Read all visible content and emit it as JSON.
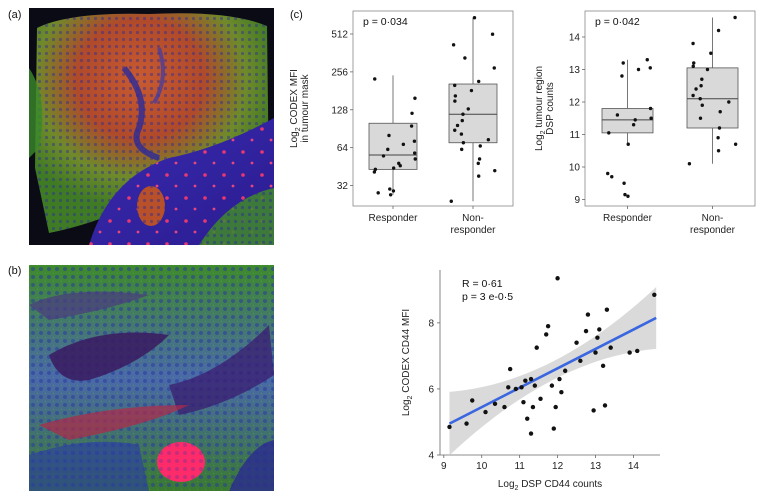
{
  "panels": {
    "a": "(a)",
    "b": "(b)",
    "c": "(c)"
  },
  "images": [
    {
      "name": "micrograph-a",
      "description": "multiplex immunofluorescence tissue section, responder",
      "colors": {
        "stroma": "#2a2ad0",
        "epithelium_red": "#d03a2a",
        "epithelium_green": "#3aa02a",
        "background": "#0a0a14"
      }
    },
    {
      "name": "micrograph-b",
      "description": "multiplex immunofluorescence tissue section, non-responder",
      "colors": {
        "stroma": "#2a2ad0",
        "epithelium_red": "#d03a2a",
        "epithelium_green": "#3aa02a",
        "background": "#0a0a14"
      }
    }
  ],
  "chart_data": [
    {
      "type": "box",
      "name": "codex-mfi-boxplot",
      "annotation": "p = 0·034",
      "ylabel_line1": "Log",
      "ylabel_sub": "2",
      "ylabel_line1_rest": " CODEX MFI",
      "ylabel_line2": "in tumour mask",
      "yscale": "log2",
      "ylim": [
        22,
        780
      ],
      "yticks": [
        {
          "v": 32,
          "label": "32"
        },
        {
          "v": 64,
          "label": "64"
        },
        {
          "v": 128,
          "label": "128"
        },
        {
          "v": 256,
          "label": "256"
        },
        {
          "v": 512,
          "label": "512"
        }
      ],
      "categories": [
        {
          "label_line1": "Responder",
          "label_line2": "",
          "box": {
            "min": 27,
            "q1": 43,
            "median": 56,
            "q3": 100,
            "max": 240
          },
          "points": [
            29,
            27,
            30,
            28,
            41,
            44,
            43,
            48,
            46,
            52,
            55,
            58,
            62,
            68,
            72,
            80,
            95,
            120,
            158,
            225
          ]
        },
        {
          "label_line1": "Non-",
          "label_line2": "responder",
          "box": {
            "min": 24,
            "q1": 70,
            "median": 118,
            "q3": 205,
            "max": 690
          },
          "points": [
            24,
            38,
            42,
            48,
            52,
            62,
            66,
            70,
            74,
            82,
            88,
            96,
            105,
            118,
            130,
            150,
            165,
            182,
            200,
            215,
            275,
            330,
            420,
            510,
            690
          ]
        }
      ]
    },
    {
      "type": "box",
      "name": "dsp-counts-boxplot",
      "annotation": "p = 0·042",
      "ylabel_line1": "Log",
      "ylabel_sub": "2",
      "ylabel_line1_rest": " tumour region",
      "ylabel_line2": "DSP counts",
      "yscale": "linear",
      "ylim": [
        8.8,
        14.8
      ],
      "yticks": [
        {
          "v": 9,
          "label": "9"
        },
        {
          "v": 10,
          "label": "10"
        },
        {
          "v": 11,
          "label": "11"
        },
        {
          "v": 12,
          "label": "12"
        },
        {
          "v": 13,
          "label": "13"
        },
        {
          "v": 14,
          "label": "14"
        }
      ],
      "categories": [
        {
          "label_line1": "Responder",
          "label_line2": "",
          "box": {
            "min": 10.7,
            "q1": 11.05,
            "median": 11.45,
            "q3": 11.8,
            "max": 13.3
          },
          "points": [
            9.1,
            9.15,
            9.5,
            9.7,
            9.8,
            10.7,
            11.05,
            11.3,
            11.45,
            11.5,
            11.6,
            11.8,
            12.8,
            13.0,
            13.05,
            13.2,
            13.3
          ]
        },
        {
          "label_line1": "Non-",
          "label_line2": "responder",
          "box": {
            "min": 10.1,
            "q1": 11.2,
            "median": 12.1,
            "q3": 13.05,
            "max": 14.6
          },
          "points": [
            10.1,
            10.5,
            10.7,
            10.9,
            11.2,
            11.5,
            11.7,
            11.9,
            12.0,
            12.1,
            12.2,
            12.4,
            12.5,
            12.7,
            13.0,
            13.1,
            13.2,
            13.5,
            13.8,
            14.2,
            14.6
          ]
        }
      ]
    },
    {
      "type": "scatter",
      "name": "cd44-correlation-scatter",
      "annotation_r": "R = 0·61",
      "annotation_p": "p = 3 e-0·5",
      "xlabel_prefix": "Log",
      "xlabel_sub": "2",
      "xlabel_rest": " DSP CD44 counts",
      "ylabel_prefix": "Log",
      "ylabel_sub": "2",
      "ylabel_rest": " CODEX CD44 MFI",
      "xlim": [
        8.9,
        14.7
      ],
      "ylim": [
        4.0,
        9.6
      ],
      "xticks": [
        {
          "v": 9,
          "label": "9"
        },
        {
          "v": 10,
          "label": "10"
        },
        {
          "v": 11,
          "label": "11"
        },
        {
          "v": 12,
          "label": "12"
        },
        {
          "v": 13,
          "label": "13"
        },
        {
          "v": 14,
          "label": "14"
        }
      ],
      "yticks": [
        {
          "v": 4,
          "label": "4"
        },
        {
          "v": 6,
          "label": "6"
        },
        {
          "v": 8,
          "label": "8"
        }
      ],
      "regression": {
        "x0": 9.15,
        "y0": 4.95,
        "x1": 14.6,
        "y1": 8.15,
        "color": "#3a66e0",
        "band_color": "#d4d4d4"
      },
      "points": [
        [
          9.15,
          4.85
        ],
        [
          9.6,
          4.95
        ],
        [
          9.75,
          5.65
        ],
        [
          10.1,
          5.3
        ],
        [
          10.35,
          5.55
        ],
        [
          10.6,
          5.45
        ],
        [
          10.7,
          6.05
        ],
        [
          10.75,
          6.6
        ],
        [
          10.9,
          6.0
        ],
        [
          11.05,
          6.05
        ],
        [
          11.1,
          5.6
        ],
        [
          11.15,
          6.25
        ],
        [
          11.2,
          5.1
        ],
        [
          11.3,
          4.65
        ],
        [
          11.3,
          6.3
        ],
        [
          11.35,
          5.45
        ],
        [
          11.4,
          6.1
        ],
        [
          11.45,
          7.25
        ],
        [
          11.55,
          5.7
        ],
        [
          11.7,
          7.65
        ],
        [
          11.75,
          7.9
        ],
        [
          11.85,
          6.1
        ],
        [
          11.9,
          4.8
        ],
        [
          11.95,
          5.45
        ],
        [
          12.0,
          9.35
        ],
        [
          12.05,
          6.3
        ],
        [
          12.1,
          5.9
        ],
        [
          12.2,
          6.55
        ],
        [
          12.5,
          7.4
        ],
        [
          12.6,
          6.85
        ],
        [
          12.75,
          7.75
        ],
        [
          12.8,
          8.25
        ],
        [
          12.95,
          5.35
        ],
        [
          13.0,
          7.1
        ],
        [
          13.05,
          7.55
        ],
        [
          13.1,
          7.8
        ],
        [
          13.2,
          6.7
        ],
        [
          13.25,
          5.5
        ],
        [
          13.3,
          8.4
        ],
        [
          13.4,
          7.25
        ],
        [
          13.9,
          7.1
        ],
        [
          14.1,
          7.15
        ],
        [
          14.55,
          8.85
        ]
      ]
    }
  ]
}
